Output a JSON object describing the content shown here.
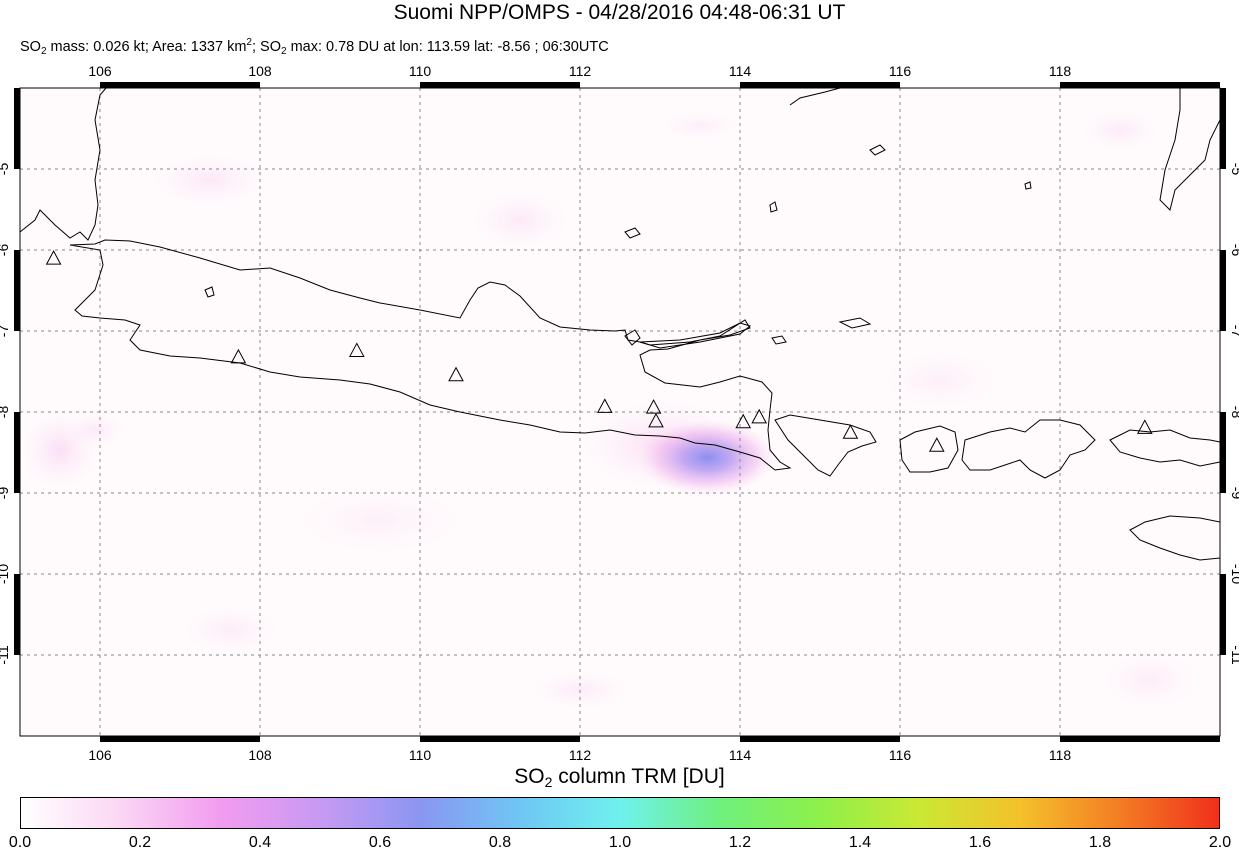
{
  "header": {
    "title": "Suomi NPP/OMPS - 04/28/2016 04:48-06:31 UT",
    "subtitle": {
      "so2_prefix": "SO",
      "sub2": "2",
      "mass_text": " mass: 0.026 kt; Area: 1337 km",
      "sup2": "2",
      "so2_prefix2": "; SO",
      "sub2b": "2",
      "max_text": " max: 0.78 DU at lon: 113.59 lat: -8.56 ; 06:30UTC"
    }
  },
  "map": {
    "lon_range": [
      105,
      120
    ],
    "lat_range": [
      -12,
      -4
    ],
    "lon_ticks": [
      106,
      108,
      110,
      112,
      114,
      116,
      118
    ],
    "lat_ticks": [
      -5,
      -6,
      -7,
      -8,
      -9,
      -10,
      -11
    ],
    "lon_tick_labels": [
      "106",
      "108",
      "110",
      "112",
      "114",
      "116",
      "118"
    ],
    "lat_tick_labels": [
      "-5",
      "-6",
      "-7",
      "-8",
      "-9",
      "-10",
      "-11"
    ],
    "grid": true,
    "volcanoes": [
      {
        "lon": 105.42,
        "lat": -6.1
      },
      {
        "lon": 107.73,
        "lat": -7.32
      },
      {
        "lon": 109.21,
        "lat": -7.24
      },
      {
        "lon": 110.45,
        "lat": -7.54
      },
      {
        "lon": 112.31,
        "lat": -7.93
      },
      {
        "lon": 112.92,
        "lat": -7.94
      },
      {
        "lon": 112.95,
        "lat": -8.11
      },
      {
        "lon": 114.04,
        "lat": -8.12
      },
      {
        "lon": 114.24,
        "lat": -8.06
      },
      {
        "lon": 115.38,
        "lat": -8.25
      },
      {
        "lon": 116.46,
        "lat": -8.41
      },
      {
        "lon": 119.06,
        "lat": -8.19
      }
    ],
    "so2_plume": {
      "lon": 113.59,
      "lat": -8.56,
      "max_du": 0.78
    }
  },
  "colorbar": {
    "title_prefix": "SO",
    "title_sub": "2",
    "title_suffix": " column TRM [DU]",
    "labels": [
      "0.0",
      "0.2",
      "0.4",
      "0.6",
      "0.8",
      "1.0",
      "1.2",
      "1.4",
      "1.6",
      "1.8",
      "2.0"
    ],
    "colors": [
      "#ffffff",
      "#fbd6f4",
      "#f29cf0",
      "#c79af2",
      "#8b96f2",
      "#6fc6f4",
      "#6ff1ee",
      "#6ff07e",
      "#8ef04a",
      "#cbe834",
      "#f4c12b",
      "#f47d24",
      "#f0301c"
    ]
  }
}
